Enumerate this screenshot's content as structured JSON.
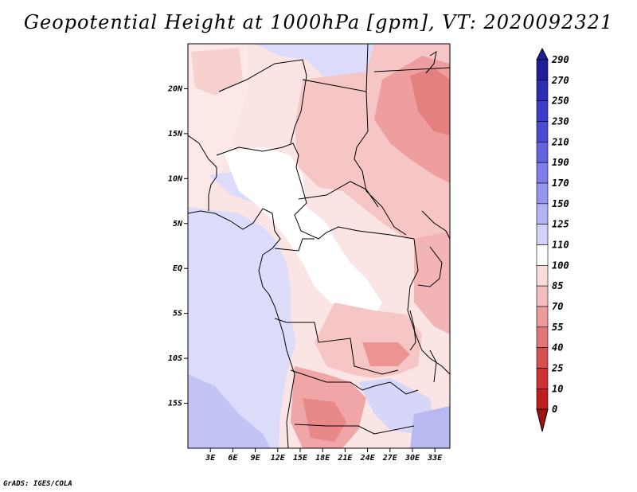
{
  "title": "Geopotential Height at 1000hPa [gpm], VT: 2020092321",
  "credit": "GrADS: IGES/COLA",
  "map": {
    "lat_labels": [
      "20N",
      "15N",
      "10N",
      "5N",
      "EQ",
      "5S",
      "10S",
      "15S"
    ],
    "lat_values": [
      20,
      15,
      10,
      5,
      0,
      -5,
      -10,
      -15
    ],
    "lon_labels": [
      "3E",
      "6E",
      "9E",
      "12E",
      "15E",
      "18E",
      "21E",
      "24E",
      "27E",
      "30E",
      "33E"
    ],
    "lon_values": [
      3,
      6,
      9,
      12,
      15,
      18,
      21,
      24,
      27,
      30,
      33
    ],
    "lon_range": [
      0,
      35
    ],
    "lat_range": [
      -20,
      25
    ]
  },
  "colorbar": {
    "labels": [
      "290",
      "270",
      "250",
      "230",
      "210",
      "190",
      "170",
      "150",
      "125",
      "110",
      "100",
      "85",
      "70",
      "55",
      "40",
      "25",
      "10",
      "0"
    ],
    "colors": [
      "#1e1e96",
      "#2d2db4",
      "#3c3cc8",
      "#4b4bd2",
      "#6464e1",
      "#7d7deb",
      "#9696f0",
      "#b4b4f5",
      "#d2d2fa",
      "#ffffff",
      "#fadcdc",
      "#f5bebe",
      "#eb9b9b",
      "#e17878",
      "#d75050",
      "#cd3232",
      "#be1e1e",
      "#a01414"
    ]
  }
}
